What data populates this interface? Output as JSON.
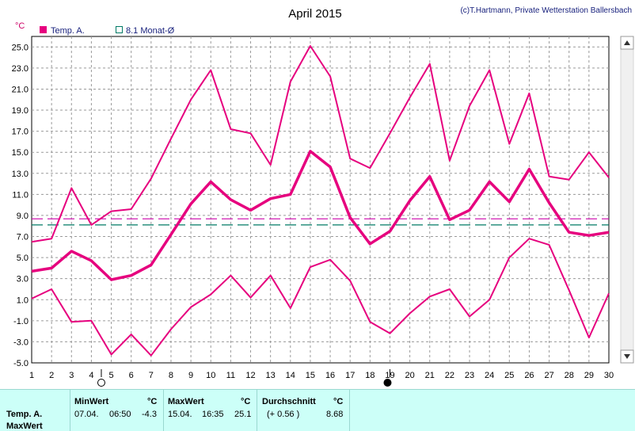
{
  "header": {
    "title": "April 2015",
    "copyright": "(c)T.Hartmann, Private Wetterstation Ballersbach",
    "unit": "°C"
  },
  "legend": {
    "series_label": "Temp. A.",
    "series_color": "#e6007e",
    "avg_label": "8.1 Monat-Ø",
    "avg_color": "#007a66"
  },
  "chart_data": {
    "type": "line",
    "title": "April 2015",
    "xlabel": "",
    "ylabel": "°C",
    "x": [
      1,
      2,
      3,
      4,
      5,
      6,
      7,
      8,
      9,
      10,
      11,
      12,
      13,
      14,
      15,
      16,
      17,
      18,
      19,
      20,
      21,
      22,
      23,
      24,
      25,
      26,
      27,
      28,
      29,
      30
    ],
    "xlim": [
      1,
      30
    ],
    "ylim": [
      -5,
      26
    ],
    "yticks": [
      25.0,
      23.0,
      21.0,
      19.0,
      17.0,
      15.0,
      13.0,
      11.0,
      9.0,
      7.0,
      5.0,
      3.0,
      1.0,
      -1.0,
      -3.0,
      -5.0
    ],
    "ytick_labels": [
      "25.0",
      "23.0",
      "21.0",
      "19.0",
      "17.0",
      "15.0",
      "13.0",
      "11.0",
      "9.0",
      "7.0",
      "5.0",
      "3.0",
      "1.0",
      "-1.0",
      "-3.0",
      "-5.0"
    ],
    "grid": true,
    "series": [
      {
        "name": "Temp. A.",
        "role": "max",
        "width": 2,
        "values": [
          6.5,
          6.8,
          11.6,
          8.1,
          9.4,
          9.6,
          12.5,
          16.3,
          20.0,
          22.8,
          17.2,
          16.8,
          13.8,
          21.7,
          25.1,
          22.2,
          14.4,
          13.5,
          16.8,
          20.2,
          23.4,
          14.2,
          19.4,
          22.8,
          15.8,
          20.6,
          12.7,
          12.4,
          15.0,
          12.6
        ]
      },
      {
        "name": "Temp. A.",
        "role": "mean",
        "width": 3.5,
        "values": [
          3.7,
          4.0,
          5.6,
          4.7,
          2.9,
          3.3,
          4.3,
          7.2,
          10.1,
          12.2,
          10.5,
          9.5,
          10.6,
          11.0,
          15.1,
          13.6,
          8.8,
          6.3,
          7.5,
          10.4,
          12.7,
          8.6,
          9.5,
          12.2,
          10.3,
          13.4,
          10.2,
          7.4,
          7.1,
          7.4
        ]
      },
      {
        "name": "Temp. A.",
        "role": "min",
        "width": 2,
        "values": [
          1.1,
          2.0,
          -1.1,
          -1.0,
          -4.2,
          -2.3,
          -4.3,
          -1.8,
          0.3,
          1.5,
          3.3,
          1.2,
          3.3,
          0.2,
          4.1,
          4.8,
          2.8,
          -1.1,
          -2.2,
          -0.3,
          1.3,
          2.0,
          -0.6,
          1.0,
          5.0,
          6.8,
          6.2,
          1.9,
          -2.6,
          1.6
        ]
      }
    ],
    "reference_lines": [
      {
        "value": 8.68,
        "color": "#cc00aa",
        "style": "dashed"
      },
      {
        "value": 8.1,
        "color": "#007a66",
        "style": "dashed"
      }
    ],
    "moon_phases": [
      {
        "day": 4.5,
        "type": "full"
      },
      {
        "day": 19,
        "type": "new"
      }
    ]
  },
  "stats": {
    "row_label": "Temp. A.",
    "row_sublabel": "MaxWert",
    "min": {
      "header": "MinWert",
      "unit": "°C",
      "date": "07.04.",
      "time": "06:50",
      "value": "-4.3"
    },
    "max": {
      "header": "MaxWert",
      "unit": "°C",
      "date": "15.04.",
      "time": "16:35",
      "value": "25.1"
    },
    "avg": {
      "header": "Durchschnitt",
      "unit": "°C",
      "delta": "(+ 0.56 )",
      "value": "8.68"
    }
  }
}
